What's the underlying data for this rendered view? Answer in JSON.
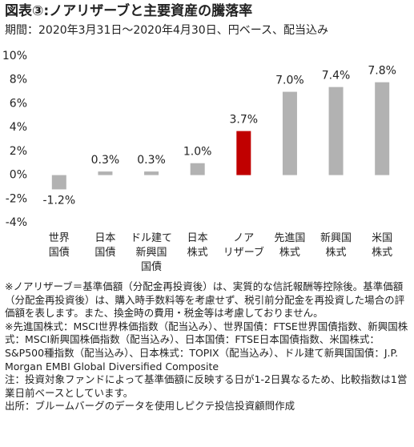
{
  "chart_data": {
    "type": "bar",
    "title": "図表③:ノアリザーブと主要資産の騰落率",
    "subtitle": "期間：2020年3月31日～2020年4月30日、円ベース、配当込み",
    "categories": [
      "世界\n国債",
      "日本\n国債",
      "ドル建て\n新興国\n国債",
      "日本\n株式",
      "ノア\nリザーブ",
      "先進国\n株式",
      "新興国\n株式",
      "米国\n株式"
    ],
    "values": [
      -1.2,
      0.3,
      0.3,
      1.0,
      3.7,
      7.0,
      7.4,
      7.8
    ],
    "value_labels": [
      "-1.2%",
      "0.3%",
      "0.3%",
      "1.0%",
      "3.7%",
      "7.0%",
      "7.4%",
      "7.8%"
    ],
    "colors": [
      "#b2b2b2",
      "#b2b2b2",
      "#b2b2b2",
      "#b2b2b2",
      "#c00000",
      "#b2b2b2",
      "#b2b2b2",
      "#b2b2b2"
    ],
    "ylim": [
      -4,
      10
    ],
    "yticks": [
      {
        "value": -4,
        "label": "-4%"
      },
      {
        "value": -2,
        "label": "-2%"
      },
      {
        "value": 0,
        "label": "0%"
      },
      {
        "value": 2,
        "label": "2%"
      },
      {
        "value": 4,
        "label": "4%"
      },
      {
        "value": 6,
        "label": "6%"
      },
      {
        "value": 8,
        "label": "8%"
      },
      {
        "value": 10,
        "label": "10%"
      }
    ],
    "grid": false,
    "notes": [
      "※ノアリザーブ＝基準価額（分配金再投資後）は、実質的な信託報酬等控除後。基準価額（分配金再投資後）は、購入時手数料等を考慮せず、税引前分配金を再投資した場合の評価額を表します。また、換金時の費用・税金等は考慮しておりません。",
      "※先進国株式：MSCI世界株価指数（配当込み）、世界国債：FTSE世界国債指数、新興国株式：MSCI新興国株価指数（配当込み）、日本国債：FTSE日本国債指数、米国株式：S&P500種指数（配当込み）、日本株式：TOPIX（配当込み）、ドル建て新興国国債：J.P. Morgan EMBI Global Diversified Composite",
      "注：投資対象ファンドによって基準価額に反映する日が1-2日異なるため、比較指数は1営業日前ベースとしています。",
      "出所：ブルームバーグのデータを使用しピクテ投信投資顧問作成"
    ]
  }
}
